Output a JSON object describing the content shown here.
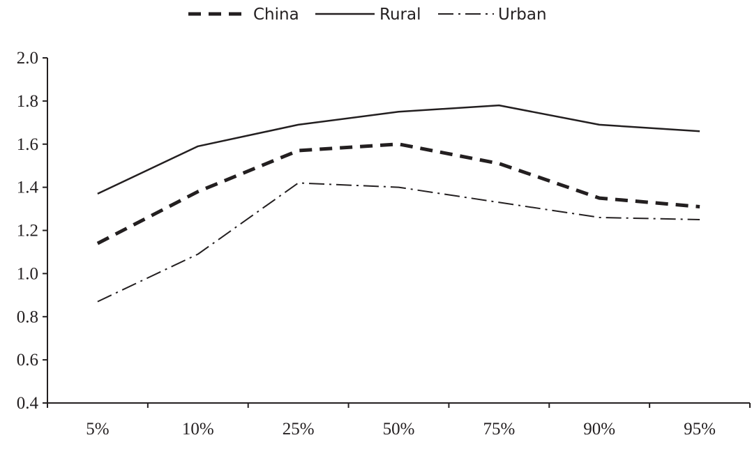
{
  "chart_data": {
    "type": "line",
    "title": "",
    "xlabel": "",
    "ylabel": "",
    "categories": [
      "5%",
      "10%",
      "25%",
      "50%",
      "75%",
      "90%",
      "95%"
    ],
    "ylim": [
      0.4,
      2.0
    ],
    "yticks": [
      "0.4",
      "0.6",
      "0.8",
      "1.0",
      "1.2",
      "1.4",
      "1.6",
      "1.8",
      "2.0"
    ],
    "grid": false,
    "legend_position": "top-center",
    "series": [
      {
        "name": "China",
        "style": "dashed",
        "color": "#231f20",
        "values": [
          1.14,
          1.38,
          1.57,
          1.6,
          1.51,
          1.35,
          1.31
        ]
      },
      {
        "name": "Rural",
        "style": "solid",
        "color": "#231f20",
        "values": [
          1.37,
          1.59,
          1.69,
          1.75,
          1.78,
          1.69,
          1.66
        ]
      },
      {
        "name": "Urban",
        "style": "dash-dot",
        "color": "#231f20",
        "values": [
          0.87,
          1.09,
          1.42,
          1.4,
          1.33,
          1.26,
          1.25
        ]
      }
    ]
  }
}
